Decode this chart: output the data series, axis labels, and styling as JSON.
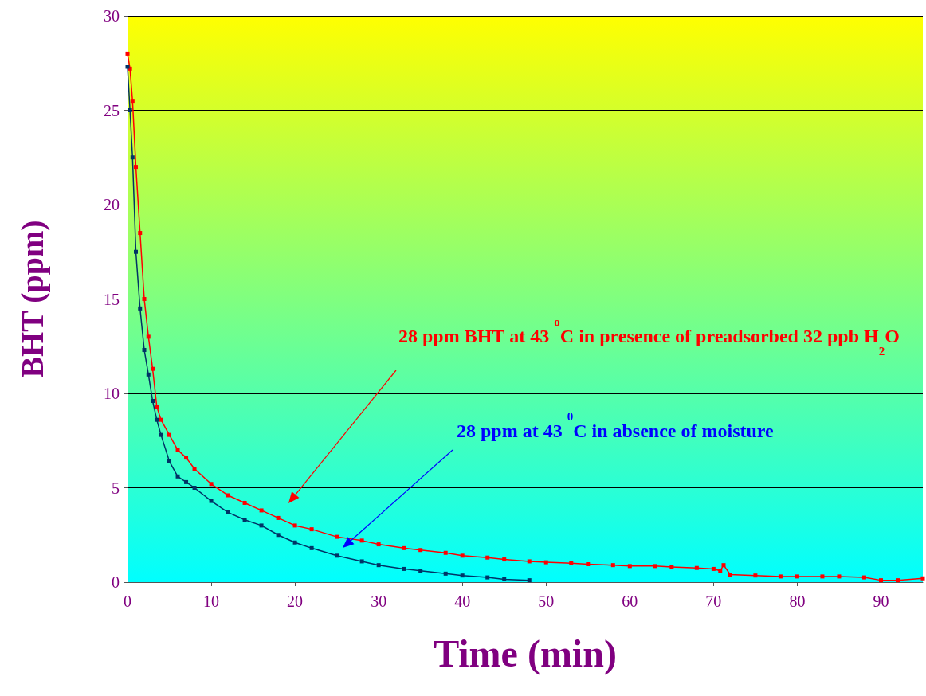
{
  "chart_data": {
    "type": "line",
    "xlabel": "Time (min)",
    "ylabel": "BHT (ppm)",
    "xlim": [
      0,
      95
    ],
    "xticks": [
      0,
      10,
      20,
      30,
      40,
      50,
      60,
      70,
      80,
      90
    ],
    "ylim": [
      0,
      30
    ],
    "yticks": [
      0,
      5,
      10,
      15,
      20,
      25,
      30
    ],
    "grid": "y",
    "marker": "square",
    "line_style": "solid",
    "series": [
      {
        "color": "#ff0000",
        "x": [
          0,
          0.3,
          0.6,
          1,
          1.5,
          2,
          2.5,
          3,
          3.5,
          4,
          5,
          6,
          7,
          8,
          10,
          12,
          14,
          16,
          18,
          20,
          22,
          25,
          28,
          30,
          33,
          35,
          38,
          40,
          43,
          45,
          48,
          50,
          53,
          55,
          58,
          60,
          63,
          65,
          68,
          70,
          70.8,
          71.2,
          72,
          75,
          78,
          80,
          83,
          85,
          88,
          90,
          92,
          95
        ],
        "values": [
          28,
          27.2,
          25.5,
          22,
          18.5,
          15,
          13,
          11.3,
          9.3,
          8.6,
          7.8,
          7,
          6.6,
          6,
          5.2,
          4.6,
          4.2,
          3.8,
          3.4,
          3,
          2.8,
          2.4,
          2.2,
          2,
          1.8,
          1.7,
          1.55,
          1.4,
          1.3,
          1.2,
          1.1,
          1.05,
          1,
          0.95,
          0.9,
          0.85,
          0.85,
          0.8,
          0.75,
          0.7,
          0.6,
          0.9,
          0.4,
          0.35,
          0.3,
          0.3,
          0.3,
          0.3,
          0.25,
          0.1,
          0.1,
          0.2
        ]
      },
      {
        "color": "#003366",
        "x": [
          0,
          0.3,
          0.6,
          1,
          1.5,
          2,
          2.5,
          3,
          3.5,
          4,
          5,
          6,
          7,
          8,
          10,
          12,
          14,
          16,
          18,
          20,
          22,
          25,
          28,
          30,
          33,
          35,
          38,
          40,
          43,
          45,
          48
        ],
        "values": [
          27.3,
          25,
          22.5,
          17.5,
          14.5,
          12.3,
          11,
          9.6,
          8.6,
          7.8,
          6.4,
          5.6,
          5.3,
          5,
          4.3,
          3.7,
          3.3,
          3,
          2.5,
          2.1,
          1.8,
          1.4,
          1.1,
          0.9,
          0.7,
          0.6,
          0.45,
          0.35,
          0.25,
          0.15,
          0.1
        ]
      }
    ],
    "annotations": [
      "28 ppm BHT at 43 $^{o}$C in presence of preadsorbed 32 ppb H$_{2}$O",
      "28 ppm at 43 $^{0}$C in absence of moisture"
    ]
  }
}
